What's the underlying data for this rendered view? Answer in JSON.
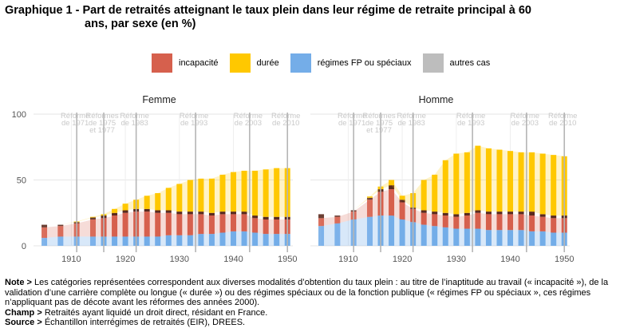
{
  "title_line1": "Graphique 1 - Part de retraités atteignant le taux plein dans leur régime de retraite principal à 60",
  "title_line2": "ans, par sexe (en %)",
  "legend": [
    {
      "label": "incapacité",
      "color": "#d6604d"
    },
    {
      "label": "durée",
      "color": "#ffc800"
    },
    {
      "label": "régimes FP ou spéciaux",
      "color": "#74ade8"
    },
    {
      "label": "autres cas",
      "color": "#bdbdbd"
    }
  ],
  "notes": {
    "note_label": "Note >",
    "note_text": " Les catégories représentées correspondent aux diverses modalités d’obtention du taux plein : au titre de l’inaptitude au travail (« incapacité »), de la validation d’une carrière complète ou longue (« durée ») ou des régimes spéciaux ou de la fonction publique (« régimes FP ou spéciaux », ces régimes n’appliquant pas de décote avant les réformes des années 2000).",
    "champ_label": "Champ >",
    "champ_text": " Retraités ayant liquidé un droit direct, résidant en France.",
    "source_label": "Source >",
    "source_text": " Échantillon interrégimes de retraités (EIR), DREES."
  },
  "chart_data": {
    "type": "bar",
    "stacked": true,
    "ylim": [
      0,
      100
    ],
    "yticks": [
      0,
      50,
      100
    ],
    "xlim": [
      1903,
      1951
    ],
    "xticks": [
      1910,
      1920,
      1930,
      1940,
      1950
    ],
    "reforms": [
      {
        "year": 1911,
        "label": "Réforme de 1971"
      },
      {
        "year": 1916,
        "label": "Réformes de 1975 et 1977"
      },
      {
        "year": 1922,
        "label": "Réforme de 1983"
      },
      {
        "year": 1933,
        "label": "Réforme de 1993"
      },
      {
        "year": 1943,
        "label": "Réforme de 2003"
      },
      {
        "year": 1950,
        "label": "Réforme de 2010"
      }
    ],
    "series_colors": {
      "regimes": "#74ade8",
      "incapacite": "#d6604d",
      "autres": "#bdbdbd",
      "duree": "#ffc800",
      "mark": "#5a2a1e"
    },
    "panels": [
      {
        "title": "Femme",
        "bars": [
          {
            "x": 1905,
            "regimes": 6,
            "incapacite": 8,
            "autres": 2,
            "duree": 0
          },
          {
            "x": 1908,
            "regimes": 7,
            "incapacite": 8,
            "autres": 1,
            "duree": 0
          },
          {
            "x": 1911,
            "regimes": 7,
            "incapacite": 10,
            "autres": 1,
            "duree": 0.5
          },
          {
            "x": 1914,
            "regimes": 7,
            "incapacite": 13,
            "autres": 1.5,
            "duree": 0.5
          },
          {
            "x": 1916,
            "regimes": 7,
            "incapacite": 14,
            "autres": 2,
            "duree": 1
          },
          {
            "x": 1918,
            "regimes": 7,
            "incapacite": 16,
            "autres": 2,
            "duree": 3
          },
          {
            "x": 1920,
            "regimes": 7,
            "incapacite": 18,
            "autres": 2,
            "duree": 5
          },
          {
            "x": 1922,
            "regimes": 7,
            "incapacite": 19,
            "autres": 2,
            "duree": 7
          },
          {
            "x": 1924,
            "regimes": 7,
            "incapacite": 19,
            "autres": 2,
            "duree": 10
          },
          {
            "x": 1926,
            "regimes": 7,
            "incapacite": 18,
            "autres": 2,
            "duree": 13
          },
          {
            "x": 1928,
            "regimes": 8,
            "incapacite": 17,
            "autres": 2,
            "duree": 17
          },
          {
            "x": 1930,
            "regimes": 8,
            "incapacite": 16,
            "autres": 2,
            "duree": 21
          },
          {
            "x": 1932,
            "regimes": 8,
            "incapacite": 16,
            "autres": 2,
            "duree": 24
          },
          {
            "x": 1934,
            "regimes": 9,
            "incapacite": 15,
            "autres": 2,
            "duree": 25
          },
          {
            "x": 1936,
            "regimes": 9,
            "incapacite": 14,
            "autres": 2,
            "duree": 26
          },
          {
            "x": 1938,
            "regimes": 10,
            "incapacite": 14,
            "autres": 2,
            "duree": 28
          },
          {
            "x": 1940,
            "regimes": 11,
            "incapacite": 13,
            "autres": 2,
            "duree": 30
          },
          {
            "x": 1942,
            "regimes": 11,
            "incapacite": 13,
            "autres": 2,
            "duree": 31
          },
          {
            "x": 1944,
            "regimes": 10,
            "incapacite": 11,
            "autres": 2,
            "duree": 34
          },
          {
            "x": 1946,
            "regimes": 9,
            "incapacite": 11,
            "autres": 2,
            "duree": 36
          },
          {
            "x": 1948,
            "regimes": 9,
            "incapacite": 11,
            "autres": 2,
            "duree": 37
          },
          {
            "x": 1950,
            "regimes": 9,
            "incapacite": 11,
            "autres": 2,
            "duree": 37
          }
        ]
      },
      {
        "title": "Homme",
        "bars": [
          {
            "x": 1905,
            "regimes": 15,
            "incapacite": 6,
            "autres": 3,
            "duree": 0
          },
          {
            "x": 1908,
            "regimes": 17,
            "incapacite": 5,
            "autres": 1,
            "duree": 0
          },
          {
            "x": 1911,
            "regimes": 20,
            "incapacite": 6,
            "autres": 1,
            "duree": 0
          },
          {
            "x": 1914,
            "regimes": 22,
            "incapacite": 13,
            "autres": 1.5,
            "duree": 1
          },
          {
            "x": 1916,
            "regimes": 23,
            "incapacite": 18,
            "autres": 2,
            "duree": 2
          },
          {
            "x": 1918,
            "regimes": 23,
            "incapacite": 20,
            "autres": 3,
            "duree": 4
          },
          {
            "x": 1920,
            "regimes": 20,
            "incapacite": 13,
            "autres": 2,
            "duree": 3
          },
          {
            "x": 1922,
            "regimes": 18,
            "incapacite": 10,
            "autres": 1,
            "duree": 11
          },
          {
            "x": 1924,
            "regimes": 16,
            "incapacite": 9,
            "autres": 2,
            "duree": 23
          },
          {
            "x": 1926,
            "regimes": 15,
            "incapacite": 9,
            "autres": 2,
            "duree": 28
          },
          {
            "x": 1928,
            "regimes": 14,
            "incapacite": 9,
            "autres": 2,
            "duree": 40
          },
          {
            "x": 1930,
            "regimes": 13,
            "incapacite": 9,
            "autres": 2,
            "duree": 46
          },
          {
            "x": 1932,
            "regimes": 13,
            "incapacite": 10,
            "autres": 2,
            "duree": 46
          },
          {
            "x": 1934,
            "regimes": 13,
            "incapacite": 12,
            "autres": 2,
            "duree": 49
          },
          {
            "x": 1936,
            "regimes": 12,
            "incapacite": 12,
            "autres": 2,
            "duree": 48
          },
          {
            "x": 1938,
            "regimes": 12,
            "incapacite": 12,
            "autres": 2,
            "duree": 47
          },
          {
            "x": 1940,
            "regimes": 12,
            "incapacite": 12,
            "autres": 2,
            "duree": 46
          },
          {
            "x": 1942,
            "regimes": 12,
            "incapacite": 12,
            "autres": 2,
            "duree": 45
          },
          {
            "x": 1944,
            "regimes": 11,
            "incapacite": 12,
            "autres": 3,
            "duree": 45
          },
          {
            "x": 1946,
            "regimes": 11,
            "incapacite": 11,
            "autres": 2,
            "duree": 46
          },
          {
            "x": 1948,
            "regimes": 10,
            "incapacite": 11,
            "autres": 2,
            "duree": 46
          },
          {
            "x": 1950,
            "regimes": 10,
            "incapacite": 11,
            "autres": 2,
            "duree": 45
          }
        ]
      }
    ]
  }
}
